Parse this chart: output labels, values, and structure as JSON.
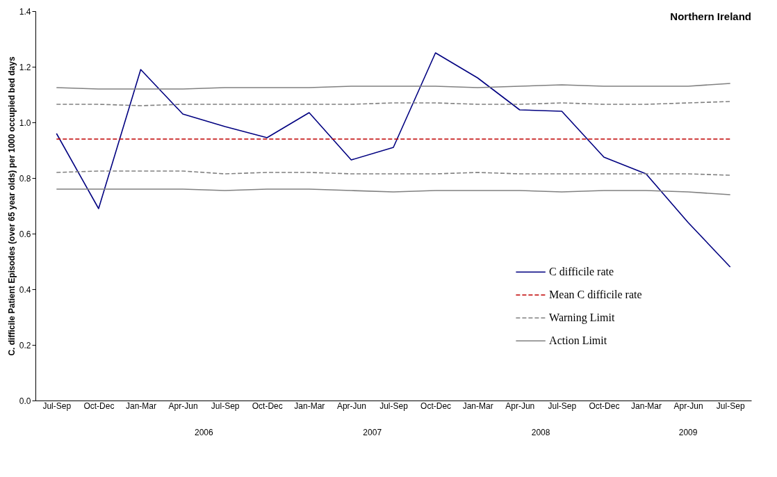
{
  "chart_data": {
    "type": "line",
    "title": "Northern Ireland",
    "ylabel": "C. difficile Patient Episodes (over 65 year olds) per 1000 occupied bed days",
    "categories": [
      "Jul-Sep",
      "Oct-Dec",
      "Jan-Mar",
      "Apr-Jun",
      "Jul-Sep",
      "Oct-Dec",
      "Jan-Mar",
      "Apr-Jun",
      "Jul-Sep",
      "Oct-Dec",
      "Jan-Mar",
      "Apr-Jun",
      "Jul-Sep",
      "Oct-Dec",
      "Jan-Mar",
      "Apr-Jun",
      "Jul-Sep"
    ],
    "series": [
      {
        "name": "C difficile rate",
        "color": "#000080",
        "line_style": "solid",
        "values": [
          0.96,
          0.69,
          1.19,
          1.03,
          0.985,
          0.945,
          1.035,
          0.865,
          0.91,
          1.25,
          1.16,
          1.045,
          1.04,
          0.875,
          0.815,
          0.64,
          0.48
        ]
      },
      {
        "name": "Mean C difficile rate",
        "color": "#c00000",
        "line_style": "dashed",
        "values": [
          0.94,
          0.94,
          0.94,
          0.94,
          0.94,
          0.94,
          0.94,
          0.94,
          0.94,
          0.94,
          0.94,
          0.94,
          0.94,
          0.94,
          0.94,
          0.94,
          0.94
        ]
      },
      {
        "name": "Warning Limit",
        "color": "#808080",
        "line_style": "dashed",
        "values": [
          1.065,
          1.065,
          1.06,
          1.065,
          1.065,
          1.065,
          1.065,
          1.065,
          1.07,
          1.07,
          1.065,
          1.065,
          1.07,
          1.065,
          1.065,
          1.07,
          1.075
        ]
      },
      {
        "color": "#808080",
        "line_style": "dashed",
        "values": [
          0.82,
          0.825,
          0.825,
          0.825,
          0.815,
          0.82,
          0.82,
          0.815,
          0.815,
          0.815,
          0.82,
          0.815,
          0.815,
          0.815,
          0.815,
          0.815,
          0.81
        ]
      },
      {
        "name": "Action Limit",
        "color": "#808080",
        "line_style": "solid",
        "values": [
          1.125,
          1.12,
          1.12,
          1.12,
          1.125,
          1.125,
          1.125,
          1.13,
          1.13,
          1.13,
          1.125,
          1.13,
          1.135,
          1.13,
          1.13,
          1.13,
          1.14
        ]
      },
      {
        "color": "#808080",
        "line_style": "solid",
        "values": [
          0.76,
          0.76,
          0.76,
          0.76,
          0.755,
          0.76,
          0.76,
          0.755,
          0.75,
          0.755,
          0.755,
          0.755,
          0.75,
          0.755,
          0.755,
          0.75,
          0.74
        ]
      }
    ],
    "ylim": [
      0,
      1.4
    ],
    "yticks": [
      {
        "value": 0,
        "label": "0.0"
      },
      0.2,
      0.4,
      0.6,
      0.8,
      {
        "value": 1,
        "label": "1.0"
      },
      1.2,
      1.4
    ],
    "annotations": [
      "2006",
      "2007",
      "2008",
      "2009"
    ],
    "legend": "bottom right",
    "grid": false
  }
}
